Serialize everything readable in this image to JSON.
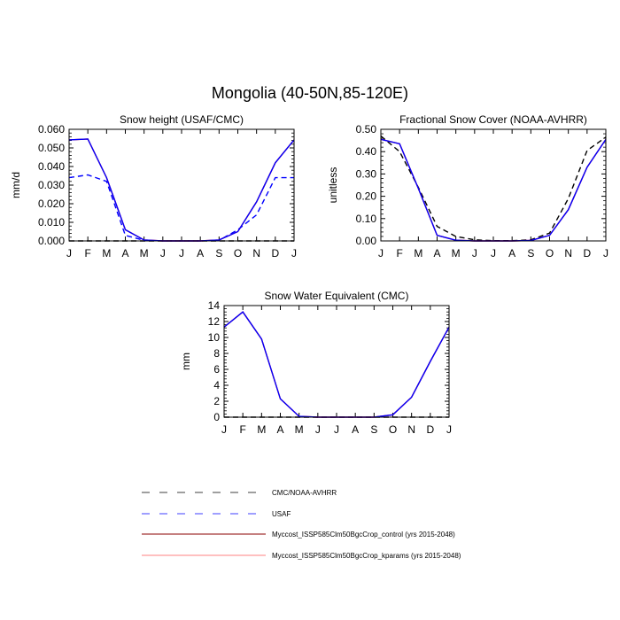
{
  "figure_title": "Mongolia (40-50N,85-120E)",
  "colors": {
    "obs_primary": "#000000",
    "obs_usaf": "#0000ff",
    "control": "#0000ff",
    "kparams": "#ff0000",
    "legend_control": "#8b0000",
    "legend_kparams": "#ff8080"
  },
  "legend": [
    {
      "label": "CMC/NOAA-AVHRR",
      "style": "dashed",
      "color": "#000000"
    },
    {
      "label": "USAF",
      "style": "dashed",
      "color": "#0000ff"
    },
    {
      "label": "Myccost_ISSP585Clm50BgcCrop_control (yrs 2015-2048)",
      "style": "solid",
      "color": "#8b0000"
    },
    {
      "label": "Myccost_ISSP585Clm50BgcCrop_kparams (yrs 2015-2048)",
      "style": "solid",
      "color": "#ff8080"
    }
  ],
  "chart_data": [
    {
      "type": "line",
      "title": "Snow height (USAF/CMC)",
      "xlabel": "",
      "ylabel": "mm/d",
      "x": [
        "J",
        "F",
        "M",
        "A",
        "M",
        "J",
        "J",
        "A",
        "S",
        "O",
        "N",
        "D",
        "J"
      ],
      "ylim": [
        0,
        0.06
      ],
      "yticks": [
        "0.000",
        "0.010",
        "0.020",
        "0.030",
        "0.040",
        "0.050",
        "0.060"
      ],
      "series": [
        {
          "name": "CMC/NOAA-AVHRR",
          "style": "dashed",
          "color": "#000000",
          "values": [
            0,
            0,
            0,
            0,
            0,
            0,
            0,
            0,
            0,
            0,
            0,
            0,
            0
          ]
        },
        {
          "name": "USAF",
          "style": "dashed",
          "color": "#0000ff",
          "values": [
            0.034,
            0.0355,
            0.032,
            0.003,
            0.0003,
            0,
            0,
            0,
            0.0003,
            0.006,
            0.014,
            0.034,
            0.034
          ]
        },
        {
          "name": "Myccost_ISSP585Clm50BgcCrop_kparams (yrs 2015-2048)",
          "style": "solid",
          "color": "#ff0000",
          "values": [
            0.0543,
            0.0548,
            0.034,
            0.006,
            0.0005,
            0,
            0,
            0,
            0.0005,
            0.005,
            0.021,
            0.042,
            0.0543
          ]
        },
        {
          "name": "Myccost_ISSP585Clm50BgcCrop_control (yrs 2015-2048)",
          "style": "solid",
          "color": "#0000ff",
          "values": [
            0.0543,
            0.0548,
            0.034,
            0.006,
            0.0005,
            0,
            0,
            0,
            0.0005,
            0.005,
            0.021,
            0.042,
            0.0543
          ]
        }
      ]
    },
    {
      "type": "line",
      "title": "Fractional Snow Cover (NOAA-AVHRR)",
      "xlabel": "",
      "ylabel": "unitless",
      "x": [
        "J",
        "F",
        "M",
        "A",
        "M",
        "J",
        "J",
        "A",
        "S",
        "O",
        "N",
        "D",
        "J"
      ],
      "ylim": [
        0,
        0.5
      ],
      "yticks": [
        "0.00",
        "0.10",
        "0.20",
        "0.30",
        "0.40",
        "0.50"
      ],
      "series": [
        {
          "name": "CMC/NOAA-AVHRR",
          "style": "dashed",
          "color": "#000000",
          "values": [
            0.47,
            0.4,
            0.24,
            0.065,
            0.02,
            0.005,
            0.001,
            0.001,
            0.005,
            0.035,
            0.19,
            0.405,
            0.465
          ]
        },
        {
          "name": "Myccost_ISSP585Clm50BgcCrop_kparams (yrs 2015-2048)",
          "style": "solid",
          "color": "#ff0000",
          "values": [
            0.455,
            0.435,
            0.235,
            0.025,
            0.003,
            0,
            0,
            0,
            0.002,
            0.025,
            0.14,
            0.33,
            0.455
          ]
        },
        {
          "name": "Myccost_ISSP585Clm50BgcCrop_control (yrs 2015-2048)",
          "style": "solid",
          "color": "#0000ff",
          "values": [
            0.455,
            0.435,
            0.235,
            0.025,
            0.003,
            0,
            0,
            0,
            0.002,
            0.025,
            0.14,
            0.33,
            0.455
          ]
        }
      ]
    },
    {
      "type": "line",
      "title": "Snow Water Equivalent (CMC)",
      "xlabel": "",
      "ylabel": "mm",
      "x": [
        "J",
        "F",
        "M",
        "A",
        "M",
        "J",
        "J",
        "A",
        "S",
        "O",
        "N",
        "D",
        "J"
      ],
      "ylim": [
        0,
        14
      ],
      "yticks": [
        "0",
        "2",
        "4",
        "6",
        "8",
        "10",
        "12",
        "14"
      ],
      "series": [
        {
          "name": "CMC/NOAA-AVHRR",
          "style": "dashed",
          "color": "#000000",
          "values": [
            0,
            0,
            0,
            0,
            0,
            0,
            0,
            0,
            0,
            0,
            0,
            0,
            0
          ]
        },
        {
          "name": "Myccost_ISSP585Clm50BgcCrop_kparams (yrs 2015-2048)",
          "style": "solid",
          "color": "#ff0000",
          "values": [
            11.3,
            13.2,
            9.8,
            2.3,
            0.1,
            0,
            0,
            0,
            0,
            0.3,
            2.5,
            7.0,
            11.3
          ]
        },
        {
          "name": "Myccost_ISSP585Clm50BgcCrop_control (yrs 2015-2048)",
          "style": "solid",
          "color": "#0000ff",
          "values": [
            11.3,
            13.2,
            9.8,
            2.3,
            0.1,
            0,
            0,
            0,
            0,
            0.3,
            2.5,
            7.0,
            11.3
          ]
        }
      ]
    }
  ]
}
